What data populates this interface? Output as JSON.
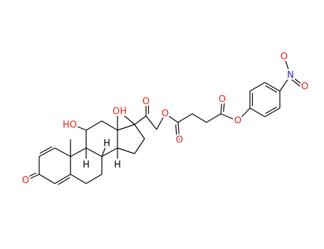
{
  "labels": [
    "O",
    "HO",
    "OH",
    "O",
    "O",
    "O",
    "O",
    "O",
    "N",
    "O",
    "O",
    "H",
    "H",
    "H"
  ]
}
